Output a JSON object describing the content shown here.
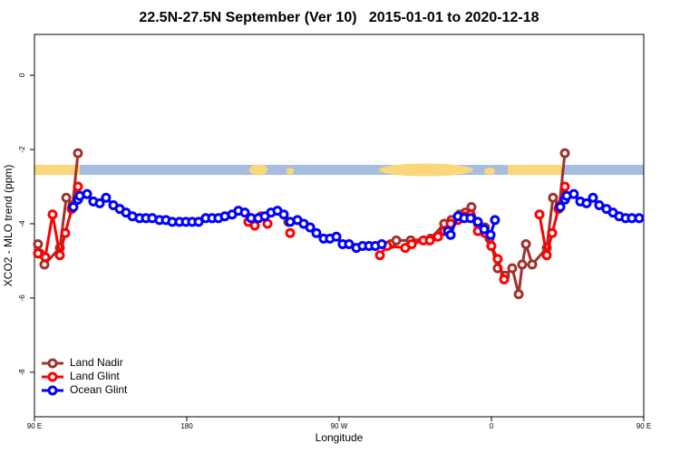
{
  "chart_data": {
    "type": "line",
    "title": "22.5N-27.5N September (Ver 10)   2015-01-01 to 2020-12-18",
    "x_label": "Longitude",
    "y_label": "XCO2 - MLO trend (ppm)",
    "xlim": [
      90,
      450
    ],
    "ylim": [
      -9.2,
      1.1
    ],
    "xticks": [
      {
        "value": 90,
        "label": "90 E"
      },
      180,
      {
        "value": 270,
        "label": "90 W"
      },
      {
        "value": 360,
        "label": "0"
      },
      {
        "value": 450,
        "label": "90 E"
      },
      180
    ],
    "yticks": [
      0,
      -2,
      -4,
      -6,
      -8
    ],
    "legend": "bottom-left",
    "series": [
      {
        "name": "Land Nadir",
        "color": "#a0322d",
        "x": [
          92.1,
          93.2,
          95.9,
          105.0,
          108.8,
          112.5,
          115.7,
          null,
          240.0,
          null,
          300.5,
          303.8,
          312.3,
          324.1,
          332.1,
          336.4,
          341.2,
          344.5,
          348.2,
          352.0,
          356.2,
          358.9,
          363.7,
          368.0,
          372.3,
          376.1,
          378.2,
          380.4,
          384.1,
          392.7,
          396.4,
          400.2,
          403.4
        ],
        "values": [
          -4.55,
          -4.8,
          -5.1,
          -4.65,
          -3.3,
          -3.5,
          -2.1,
          null,
          -3.95,
          null,
          -4.55,
          -4.45,
          -4.45,
          -4.4,
          -4.0,
          -3.9,
          -3.75,
          -3.7,
          -3.55,
          -4.0,
          -4.1,
          -4.4,
          -5.2,
          -5.4,
          -5.2,
          -5.9,
          -5.1,
          -4.55,
          -5.1,
          -4.65,
          -3.3,
          -3.5,
          -2.1
        ]
      },
      {
        "name": "Land Glint",
        "color": "#ff0000",
        "x": [
          92.1,
          96.4,
          100.7,
          105.0,
          108.2,
          112.0,
          115.7,
          null,
          216.4,
          220.2,
          223.9,
          227.7,
          null,
          241.1,
          null,
          294.1,
          298.4,
          309.1,
          312.9,
          319.8,
          323.6,
          328.4,
          332.1,
          335.9,
          340.2,
          343.9,
          347.7,
          352.0,
          356.2,
          360.0,
          363.7,
          367.5,
          null,
          388.4,
          392.7,
          395.9,
          399.6,
          403.4
        ],
        "values": [
          -4.8,
          -4.9,
          -3.75,
          -4.85,
          -4.25,
          -3.6,
          -3.0,
          null,
          -3.95,
          -4.05,
          -3.8,
          -4.0,
          null,
          -4.25,
          null,
          -4.85,
          -4.6,
          -4.65,
          -4.55,
          -4.45,
          -4.45,
          -4.35,
          -4.2,
          -4.0,
          -3.9,
          -3.8,
          -3.75,
          -4.2,
          -4.25,
          -4.6,
          -4.95,
          -5.5,
          null,
          -3.75,
          -4.85,
          -4.25,
          -3.6,
          -3.0
        ]
      },
      {
        "name": "Ocean Glint",
        "color": "#0000ff",
        "x": [
          113.0,
          115.7,
          116.8,
          121.1,
          124.8,
          128.6,
          132.3,
          136.6,
          140.4,
          144.1,
          147.9,
          152.1,
          155.9,
          159.6,
          163.9,
          167.7,
          171.4,
          175.7,
          179.5,
          183.2,
          187.0,
          191.2,
          195.0,
          198.7,
          202.5,
          206.8,
          210.5,
          214.3,
          218.0,
          222.3,
          226.1,
          229.8,
          233.6,
          237.3,
          241.1,
          245.4,
          249.1,
          252.9,
          256.6,
          260.9,
          264.6,
          268.4,
          272.1,
          275.9,
          280.2,
          283.9,
          287.7,
          291.4,
          295.2,
          null,
          334.3,
          335.9,
          340.2,
          343.9,
          347.7,
          352.0,
          355.7,
          359.5,
          362.1,
          null,
          400.7,
          403.4,
          404.5,
          408.7,
          412.5,
          416.2,
          420.0,
          423.7,
          428.0,
          431.8,
          435.5,
          439.3,
          443.0,
          447.3
        ],
        "values": [
          -3.55,
          -3.35,
          -3.25,
          -3.2,
          -3.4,
          -3.45,
          -3.3,
          -3.5,
          -3.6,
          -3.7,
          -3.8,
          -3.85,
          -3.85,
          -3.85,
          -3.9,
          -3.9,
          -3.95,
          -3.95,
          -3.95,
          -3.95,
          -3.95,
          -3.85,
          -3.85,
          -3.85,
          -3.8,
          -3.75,
          -3.65,
          -3.7,
          -3.85,
          -3.85,
          -3.8,
          -3.7,
          -3.65,
          -3.75,
          -3.95,
          -3.9,
          -4.0,
          -4.1,
          -4.25,
          -4.4,
          -4.4,
          -4.35,
          -4.55,
          -4.55,
          -4.65,
          -4.6,
          -4.6,
          -4.6,
          -4.55,
          null,
          -4.2,
          -4.3,
          -3.8,
          -3.85,
          -3.85,
          -3.95,
          -4.15,
          -4.3,
          -3.9,
          null,
          -3.55,
          -3.35,
          -3.25,
          -3.2,
          -3.4,
          -3.45,
          -3.3,
          -3.5,
          -3.6,
          -3.7,
          -3.8,
          -3.85,
          -3.85,
          -3.85
        ]
      }
    ]
  }
}
